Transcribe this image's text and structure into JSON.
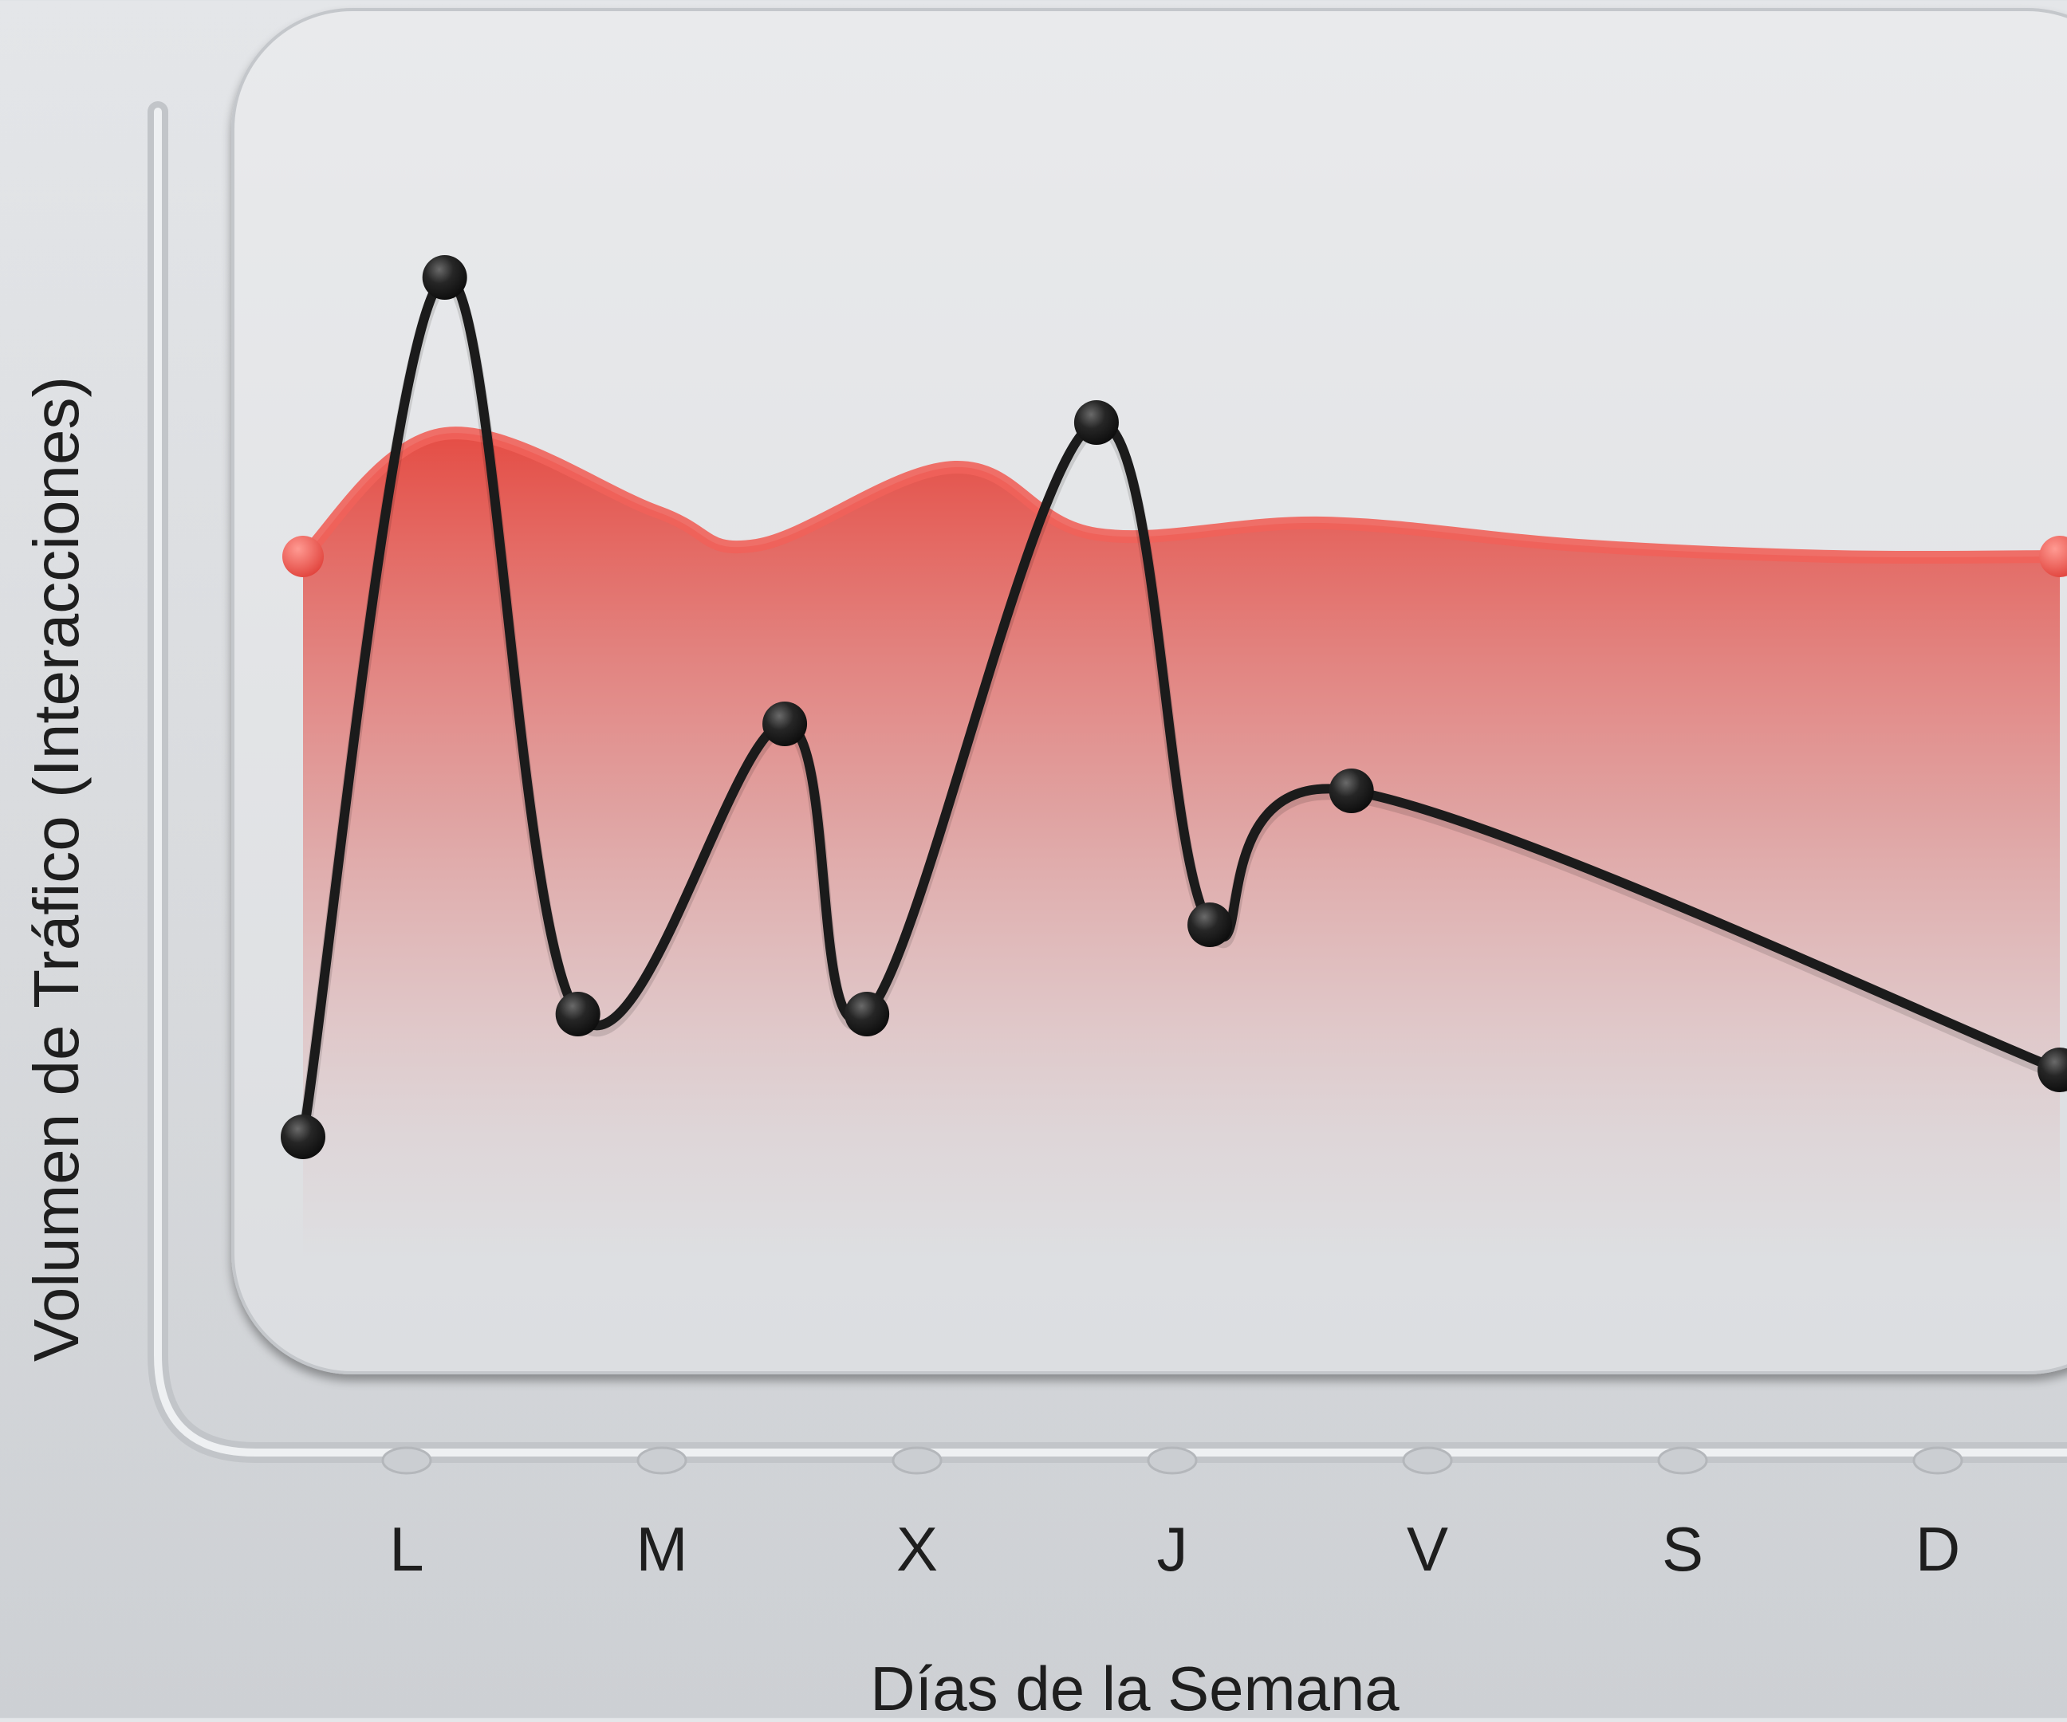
{
  "chart_data": {
    "type": "line",
    "title": "",
    "xlabel": "Días de la Semana",
    "ylabel": "Volumen de Tráfico (Interacciones)",
    "tick_labels": [
      "L",
      "M",
      "X",
      "J",
      "V",
      "S",
      "D"
    ],
    "ylim": [
      0,
      100
    ],
    "grid": false,
    "legend": "none",
    "series": [
      {
        "style": "area",
        "color": "#e8574f",
        "x": [
          0,
          0.5,
          1.25,
          1.6,
          2.3,
          2.8,
          3.6,
          4.5,
          5.4,
          6.2
        ],
        "values": [
          63,
          74,
          67,
          64,
          71,
          65,
          66,
          64,
          63,
          63
        ]
      },
      {
        "style": "line-markers",
        "color": "#1b1b1b",
        "x": [
          0,
          0.5,
          0.97,
          1.7,
          1.99,
          2.8,
          3.2,
          3.7,
          6.2
        ],
        "values": [
          11,
          88,
          22,
          48,
          22,
          75,
          30,
          42,
          17
        ]
      }
    ]
  }
}
